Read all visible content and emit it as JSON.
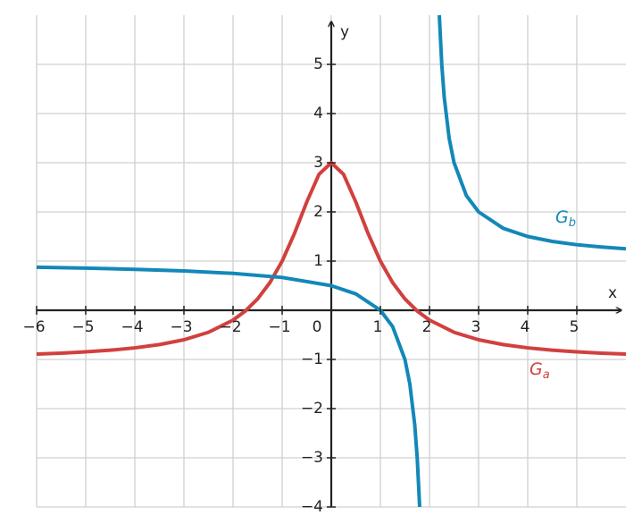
{
  "chart_data": {
    "type": "line",
    "x_label": "x",
    "y_label": "y",
    "xlim": [
      -6,
      6
    ],
    "ylim": [
      -4,
      6
    ],
    "grid": true,
    "xticks": [
      {
        "value": -6,
        "label": "−6"
      },
      {
        "value": -5,
        "label": "−5"
      },
      {
        "value": -4,
        "label": "−4"
      },
      {
        "value": -3,
        "label": "−3"
      },
      {
        "value": -2,
        "label": "−2"
      },
      {
        "value": -1,
        "label": "−1"
      },
      0,
      1,
      2,
      3,
      4,
      5
    ],
    "yticks": [
      {
        "value": -4,
        "label": "−4"
      },
      {
        "value": -3,
        "label": "−3"
      },
      {
        "value": -2,
        "label": "−2"
      },
      {
        "value": -1,
        "label": "−1"
      },
      1,
      2,
      3,
      4,
      5
    ],
    "series": [
      {
        "name": "G",
        "name_sub": "a",
        "color": "#d0413e",
        "x": [
          -6,
          -5.5,
          -5,
          -4.5,
          -4,
          -3.5,
          -3,
          -2.5,
          -2,
          -1.75,
          -1.5,
          -1.25,
          -1,
          -0.75,
          -0.5,
          -0.25,
          0,
          0.25,
          0.5,
          0.75,
          1,
          1.25,
          1.5,
          1.75,
          2,
          2.5,
          3,
          3.5,
          4,
          4.5,
          5,
          5.5,
          6
        ],
        "values": [
          -0.892,
          -0.872,
          -0.846,
          -0.812,
          -0.765,
          -0.698,
          -0.6,
          -0.448,
          -0.2,
          -0.015,
          0.231,
          0.561,
          1,
          1.56,
          2.2,
          2.765,
          3,
          2.765,
          2.2,
          1.56,
          1,
          0.561,
          0.231,
          -0.015,
          -0.2,
          -0.448,
          -0.6,
          -0.698,
          -0.765,
          -0.812,
          -0.846,
          -0.872,
          -0.892
        ]
      },
      {
        "name": "G",
        "name_sub": "b",
        "color": "#1388b8",
        "x": [
          -6,
          -5,
          -4,
          -3,
          -2,
          -1,
          0,
          0.5,
          1,
          1.25,
          1.5,
          1.6,
          1.7,
          1.75,
          1.8,
          2,
          2.2,
          2.25,
          2.3,
          2.4,
          2.5,
          2.75,
          3,
          3.5,
          4,
          4.5,
          5,
          5.5,
          6
        ],
        "values": [
          0.875,
          0.857,
          0.833,
          0.8,
          0.75,
          0.667,
          0.5,
          0.333,
          0,
          -0.333,
          -1,
          -1.5,
          -2.333,
          -3,
          -4,
          null,
          6,
          5,
          4.333,
          3.5,
          3,
          2.333,
          2,
          1.667,
          1.5,
          1.4,
          1.333,
          1.286,
          1.25
        ]
      }
    ]
  }
}
